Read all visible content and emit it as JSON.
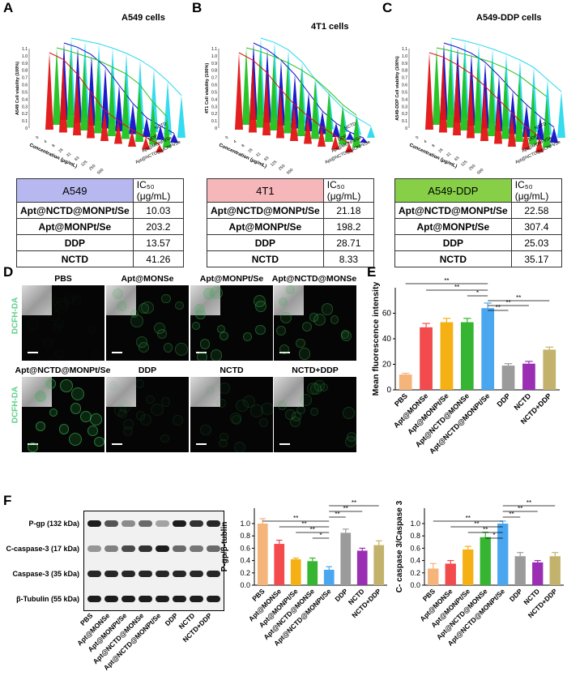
{
  "panels": {
    "A": {
      "letter": "A",
      "title": "A549 cells",
      "zlabel": "A549 Cell viability (100%)",
      "table": {
        "cellline": "A549",
        "unit": "IC₅₀ (μg/mL)",
        "header_color": "#b7b8ef",
        "rows": [
          {
            "name": "Apt@NCTD@MONPt/Se",
            "value": "10.03"
          },
          {
            "name": "Apt@MONPt/Se",
            "value": "203.2"
          },
          {
            "name": "DDP",
            "value": "13.57"
          },
          {
            "name": "NCTD",
            "value": "41.26"
          }
        ]
      }
    },
    "B": {
      "letter": "B",
      "title": "4T1 cells",
      "zlabel": "4T1 Cell viability (100%)",
      "table": {
        "cellline": "4T1",
        "unit": "IC₅₀ (μg/mL)",
        "header_color": "#f6b7bb",
        "rows": [
          {
            "name": "Apt@NCTD@MONPt/Se",
            "value": "21.18"
          },
          {
            "name": "Apt@MONPt/Se",
            "value": "198.2"
          },
          {
            "name": "DDP",
            "value": "28.71"
          },
          {
            "name": "NCTD",
            "value": "8.33"
          }
        ]
      }
    },
    "C": {
      "letter": "C",
      "title": "A549-DDP cells",
      "zlabel": "A549-DDP Cell viability (100%)",
      "table": {
        "cellline": "A549-DDP",
        "unit": "IC₅₀ (μg/mL)",
        "header_color": "#86cf47",
        "rows": [
          {
            "name": "Apt@NCTD@MONPt/Se",
            "value": "22.58"
          },
          {
            "name": "Apt@MONPt/Se",
            "value": "307.4"
          },
          {
            "name": "DDP",
            "value": "25.03"
          },
          {
            "name": "NCTD",
            "value": "35.17"
          }
        ]
      }
    },
    "D": {
      "letter": "D",
      "channel_label": "DCFH-DA",
      "images": [
        "PBS",
        "Apt@MONSe",
        "Apt@MONPt/Se",
        "Apt@NCTD@MONSe",
        "Apt@NCTD@MONPt/Se",
        "DDP",
        "NCTD",
        "NCTD+DDP"
      ]
    },
    "E": {
      "letter": "E"
    },
    "F": {
      "letter": "F",
      "blot_labels": [
        "P-gp (132 kDa)",
        "C-caspase-3 (17 kDa)",
        "Caspase-3 (35 kDa)",
        "β-Tubulin (55 kDa)"
      ]
    }
  },
  "surface_axes": {
    "y_ticks": [
      "0",
      "0.1",
      "0.2",
      "0.3",
      "0.4",
      "0.5",
      "0.6",
      "0.7",
      "0.8",
      "0.9",
      "1.0",
      "1.1"
    ],
    "conc_ticks": [
      "0",
      "4",
      "8",
      "16",
      "31",
      "63",
      "125",
      "250",
      "500"
    ],
    "conc_label": "Concentration (μg/mL)",
    "groups": [
      "NCTD",
      "DDP",
      "Apt@MONPt/Se",
      "Apt@NCTD@MONPt/Se"
    ]
  },
  "treatments": [
    "PBS",
    "Apt@MONSe",
    "Apt@MONPt/Se",
    "Apt@NCTD@MONSe",
    "Apt@NCTD@MONPt/Se",
    "DDP",
    "NCTD",
    "NCTD+DDP"
  ],
  "chart_data": [
    {
      "id": "E",
      "type": "bar",
      "title": "",
      "xlabel": "",
      "ylabel": "Mean fluorescence intensity",
      "categories": [
        "PBS",
        "Apt@MONSe",
        "Apt@MONPt/Se",
        "Apt@NCTD@MONSe",
        "Apt@NCTD@MONPt/Se",
        "DDP",
        "NCTD",
        "NCTD+DDP"
      ],
      "values": [
        12,
        49,
        53,
        53,
        64,
        19,
        20.5,
        31.5
      ],
      "errors": [
        1,
        3,
        3,
        3,
        4,
        1.5,
        1.8,
        2
      ],
      "colors": [
        "#f5b47a",
        "#f24a4d",
        "#f5b013",
        "#35b531",
        "#4aa7ef",
        "#9b9b9b",
        "#9a2fb4",
        "#c3b26c"
      ],
      "ylim": [
        0,
        80
      ],
      "yticks": [
        0,
        20,
        40,
        60
      ],
      "significance": [
        "**",
        "**",
        "*",
        "**",
        "**",
        "**"
      ]
    },
    {
      "id": "F1",
      "type": "bar",
      "ylabel": "P-gp/β-tublin",
      "categories": [
        "PBS",
        "Apt@MONSe",
        "Apt@MONPt/Se",
        "Apt@NCTD@MONSe",
        "Apt@NCTD@MONPt/Se",
        "DDP",
        "NCTD",
        "NCTD+DDP"
      ],
      "values": [
        1.0,
        0.67,
        0.42,
        0.39,
        0.25,
        0.85,
        0.56,
        0.65
      ],
      "errors": [
        0.08,
        0.06,
        0.02,
        0.05,
        0.05,
        0.06,
        0.04,
        0.07
      ],
      "colors": [
        "#f5b47a",
        "#f24a4d",
        "#f5b013",
        "#35b531",
        "#4aa7ef",
        "#9b9b9b",
        "#9a2fb4",
        "#c3b26c"
      ],
      "ylim": [
        0,
        1.25
      ],
      "yticks": [
        0.0,
        0.2,
        0.4,
        0.6,
        0.8,
        1.0
      ],
      "significance": [
        "**",
        "**",
        "**",
        "*",
        "**",
        "**",
        "**"
      ]
    },
    {
      "id": "F2",
      "type": "bar",
      "ylabel": "C- caspase 3/Caspase 3",
      "categories": [
        "PBS",
        "Apt@MONSe",
        "Apt@MONPt/Se",
        "Apt@NCTD@MONSe",
        "Apt@NCTD@MONPt/Se",
        "DDP",
        "NCTD",
        "NCTD+DDP"
      ],
      "values": [
        0.27,
        0.35,
        0.58,
        0.78,
        1.0,
        0.47,
        0.37,
        0.47
      ],
      "errors": [
        0.08,
        0.05,
        0.05,
        0.08,
        0.04,
        0.06,
        0.03,
        0.06
      ],
      "colors": [
        "#f5b47a",
        "#f24a4d",
        "#f5b013",
        "#35b531",
        "#4aa7ef",
        "#9b9b9b",
        "#9a2fb4",
        "#c3b26c"
      ],
      "ylim": [
        0,
        1.25
      ],
      "yticks": [
        0.0,
        0.2,
        0.4,
        0.6,
        0.8,
        1.0
      ],
      "significance": [
        "**",
        "**",
        "**",
        "*",
        "**",
        "**",
        "**"
      ]
    }
  ]
}
